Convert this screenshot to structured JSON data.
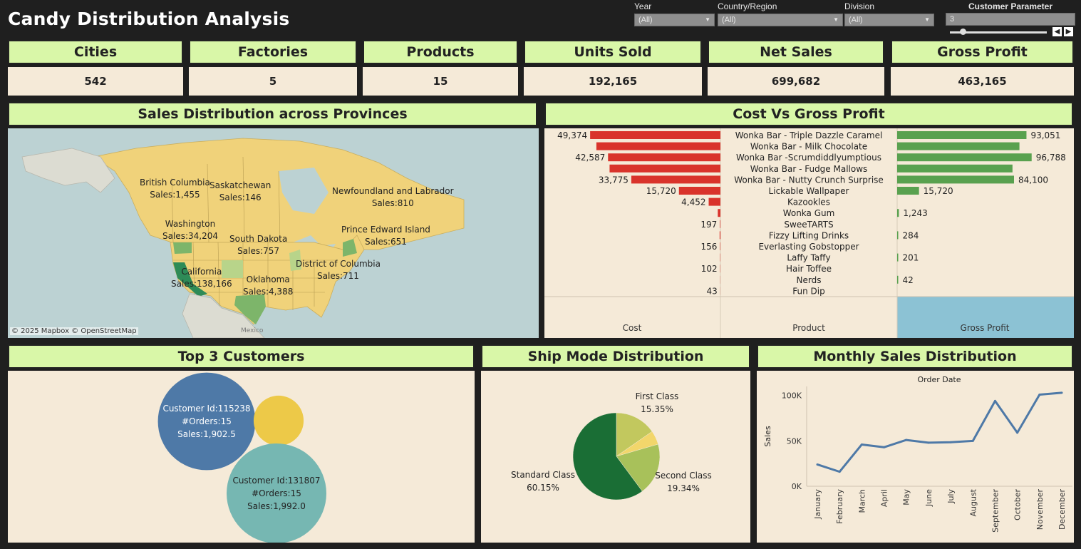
{
  "title": "Candy Distribution Analysis",
  "filters": [
    {
      "label": "Year",
      "value": "(All)"
    },
    {
      "label": "Country/Region",
      "value": "(All)"
    },
    {
      "label": "Division",
      "value": "(All)"
    }
  ],
  "parameter": {
    "label": "Customer Parameter",
    "value": "3",
    "slider_fraction": 0.1
  },
  "kpis": [
    {
      "label": "Cities",
      "value": "542"
    },
    {
      "label": "Factories",
      "value": "5"
    },
    {
      "label": "Products",
      "value": "15"
    },
    {
      "label": "Units Sold",
      "value": "192,165"
    },
    {
      "label": "Net Sales",
      "value": "699,682"
    },
    {
      "label": "Gross Profit",
      "value": "463,165"
    }
  ],
  "map": {
    "title": "Sales Distribution across Provinces",
    "attribution": "© 2025 Mapbox  © OpenStreetMap",
    "mexico_label": "Mexico",
    "labels": [
      {
        "name": "British Columbia",
        "sales": "Sales:1,455"
      },
      {
        "name": "Saskatchewan",
        "sales": "Sales:146"
      },
      {
        "name": "Newfoundland and Labrador",
        "sales": "Sales:810"
      },
      {
        "name": "Washington",
        "sales": "Sales:34,204"
      },
      {
        "name": "Prince Edward Island",
        "sales": "Sales:651"
      },
      {
        "name": "South Dakota",
        "sales": "Sales:757"
      },
      {
        "name": "District of Columbia",
        "sales": "Sales:711"
      },
      {
        "name": "California",
        "sales": "Sales:138,166"
      },
      {
        "name": "Oklahoma",
        "sales": "Sales:4,388"
      }
    ],
    "colors": {
      "land": "#f0d27a",
      "mid": "#7db56a",
      "dark": "#2e8b57",
      "water": "#b9d0d2"
    }
  },
  "chart_data": [
    {
      "type": "bar",
      "title": "Cost Vs Gross Profit",
      "categories": [
        "Wonka Bar - Triple Dazzle Caramel",
        "Wonka Bar - Milk Chocolate",
        "Wonka Bar -Scrumdiddlyumptious",
        "Wonka Bar - Fudge Mallows",
        "Wonka Bar - Nutty Crunch Surprise",
        "Lickable Wallpaper",
        "Kazookles",
        "Wonka Gum",
        "SweeTARTS",
        "Fizzy Lifting Drinks",
        "Everlasting Gobstopper",
        "Laffy Taffy",
        "Hair Toffee",
        "Nerds",
        "Fun Dip"
      ],
      "series": [
        {
          "name": "Cost",
          "values": [
            49374,
            47000,
            42587,
            42000,
            33775,
            15720,
            4452,
            1000,
            197,
            300,
            156,
            120,
            102,
            60,
            43
          ],
          "labels": [
            "49,374",
            "",
            "42,587",
            "",
            "33,775",
            "15,720",
            "4,452",
            "",
            "197",
            "",
            "156",
            "",
            "102",
            "",
            "43"
          ]
        },
        {
          "name": "Gross Profit",
          "values": [
            93051,
            88000,
            96788,
            83000,
            84100,
            15720,
            0,
            1243,
            0,
            284,
            0,
            201,
            0,
            42,
            0
          ],
          "labels": [
            "93,051",
            "",
            "96,788",
            "",
            "84,100",
            "15,720",
            "",
            "1,243",
            "",
            "284",
            "",
            "201",
            "",
            "42",
            ""
          ]
        }
      ],
      "column_headers": [
        "Cost",
        "Product",
        "Gross Profit"
      ],
      "colors": {
        "cost": "#d9332b",
        "profit": "#59a14f",
        "selected": "#8cc2d4"
      }
    },
    {
      "type": "bubble",
      "title": "Top 3 Customers",
      "items": [
        {
          "id": "Customer Id:115238",
          "orders": "#Orders:15",
          "sales": "Sales:1,902.5",
          "value": 1902.5,
          "color": "#4e79a7"
        },
        {
          "id": "",
          "orders": "",
          "sales": "",
          "value": 500,
          "color": "#edc948"
        },
        {
          "id": "Customer Id:131807",
          "orders": "#Orders:15",
          "sales": "Sales:1,992.0",
          "value": 1992.0,
          "color": "#76b7b2"
        }
      ]
    },
    {
      "type": "pie",
      "title": "Ship Mode Distribution",
      "slices": [
        {
          "name": "Standard Class",
          "percent": 60.15,
          "label": "60.15%",
          "color": "#1a6e35"
        },
        {
          "name": "Second Class",
          "percent": 19.34,
          "label": "19.34%",
          "color": "#a8c15a"
        },
        {
          "name": "Same Day",
          "percent": 5.16,
          "label": "",
          "color": "#f2d66b"
        },
        {
          "name": "First Class",
          "percent": 15.35,
          "label": "15.35%",
          "color": "#c2c85e"
        }
      ]
    },
    {
      "type": "line",
      "title": "Monthly Sales Distribution",
      "subtitle": "Order Date",
      "ylabel": "Sales",
      "categories": [
        "January",
        "February",
        "March",
        "April",
        "May",
        "June",
        "July",
        "August",
        "September",
        "October",
        "November",
        "December"
      ],
      "values": [
        24000,
        16000,
        46000,
        43000,
        51000,
        48000,
        48500,
        50000,
        94000,
        59000,
        101000,
        103000
      ],
      "ylim": [
        0,
        110000
      ],
      "yticks": [
        0,
        50000,
        100000
      ],
      "ytick_labels": [
        "0K",
        "50K",
        "100K"
      ],
      "color": "#4e79a7"
    }
  ]
}
